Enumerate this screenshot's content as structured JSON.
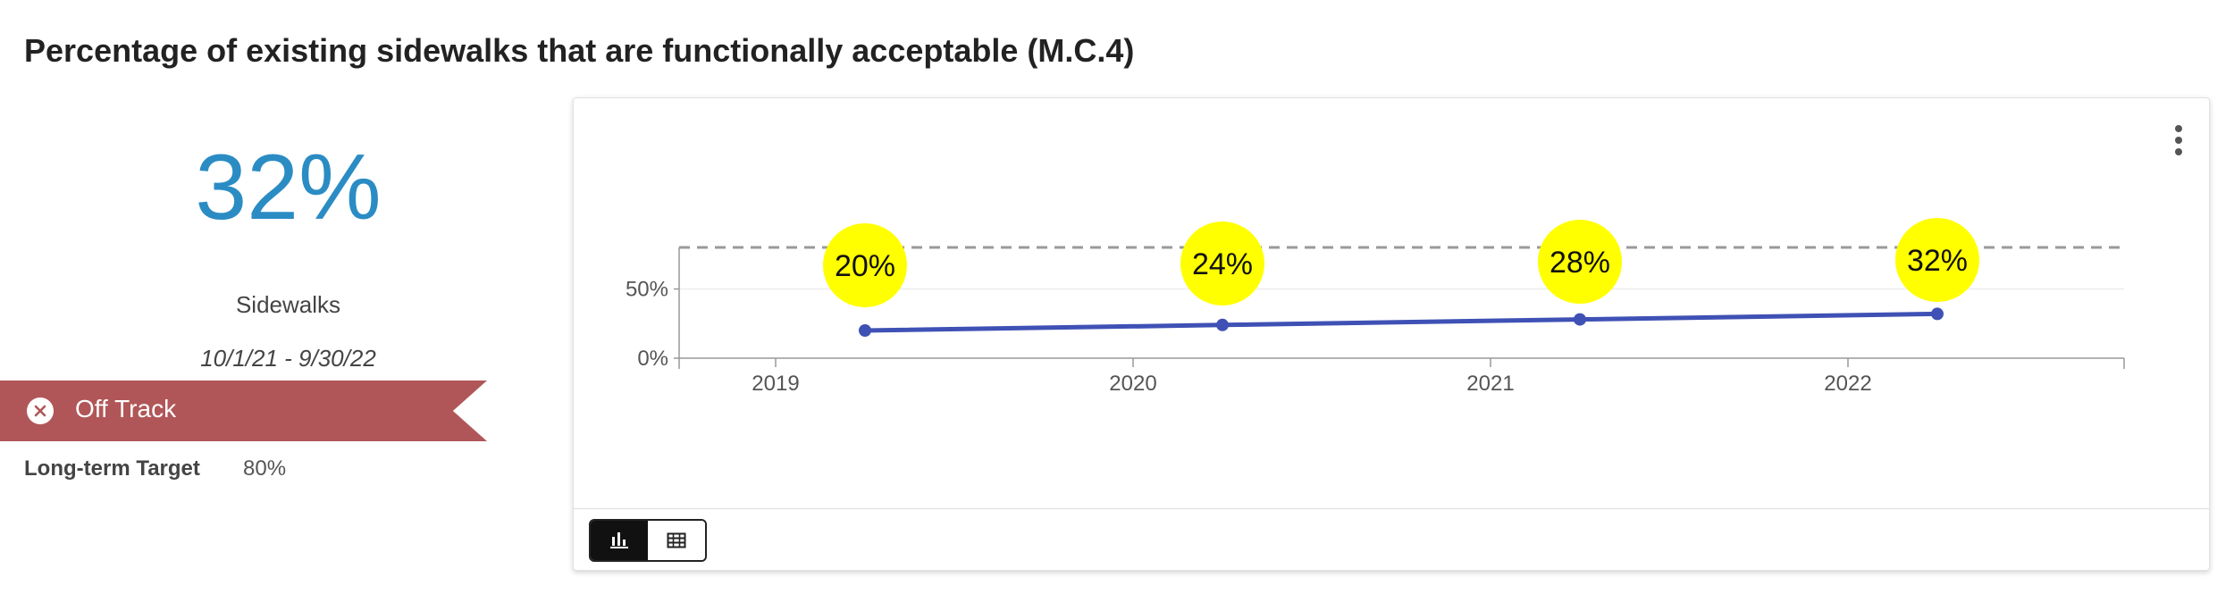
{
  "page": {
    "title": "Percentage of existing sidewalks that are functionally acceptable (M.C.4)"
  },
  "kpi": {
    "value": "32%",
    "label": "Sidewalks",
    "date_range": "10/1/21 - 9/30/22",
    "status": "Off Track",
    "target_label": "Long-term Target",
    "target_value": "80%"
  },
  "colors": {
    "kpi_value": "#2b8cc4",
    "status_banner": "#b15658",
    "series_line": "#3f51b5",
    "data_label_bubble": "#ffff00",
    "target_line": "#999999"
  },
  "icons": {
    "status": "close-circle-icon",
    "menu": "more-vert-icon",
    "chart_view": "bar-chart-icon",
    "table_view": "table-icon"
  },
  "chart_data": {
    "type": "line",
    "categories": [
      "2019",
      "2020",
      "2021",
      "2022"
    ],
    "series": [
      {
        "values": [
          20,
          24,
          28,
          32
        ],
        "data_labels": [
          "20%",
          "24%",
          "28%",
          "32%"
        ]
      }
    ],
    "target": 80,
    "y_ticks": [
      0,
      50
    ],
    "y_tick_labels": [
      "0%",
      "50%"
    ],
    "ylim": [
      0,
      80
    ],
    "grid": true,
    "legend": "none"
  }
}
